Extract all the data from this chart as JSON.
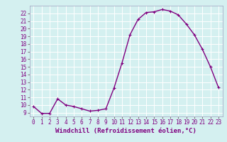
{
  "x": [
    0,
    1,
    2,
    3,
    4,
    5,
    6,
    7,
    8,
    9,
    10,
    11,
    12,
    13,
    14,
    15,
    16,
    17,
    18,
    19,
    20,
    21,
    22,
    23
  ],
  "y": [
    9.8,
    8.9,
    8.9,
    10.8,
    10.0,
    9.8,
    9.5,
    9.2,
    9.3,
    9.5,
    12.2,
    15.5,
    19.2,
    21.2,
    22.1,
    22.2,
    22.5,
    22.3,
    21.8,
    20.6,
    19.2,
    17.3,
    15.0,
    12.3
  ],
  "line_color": "#800080",
  "marker": "+",
  "bg_color": "#d4f0f0",
  "grid_color": "#ffffff",
  "xlabel": "Windchill (Refroidissement éolien,°C)",
  "ylabel": "",
  "xlim": [
    -0.5,
    23.5
  ],
  "ylim": [
    8.5,
    23.0
  ],
  "yticks": [
    9,
    10,
    11,
    12,
    13,
    14,
    15,
    16,
    17,
    18,
    19,
    20,
    21,
    22
  ],
  "xticks": [
    0,
    1,
    2,
    3,
    4,
    5,
    6,
    7,
    8,
    9,
    10,
    11,
    12,
    13,
    14,
    15,
    16,
    17,
    18,
    19,
    20,
    21,
    22,
    23
  ],
  "tick_label_size": 5.5,
  "xlabel_size": 6.5,
  "line_width": 1.0,
  "marker_size": 3.5
}
